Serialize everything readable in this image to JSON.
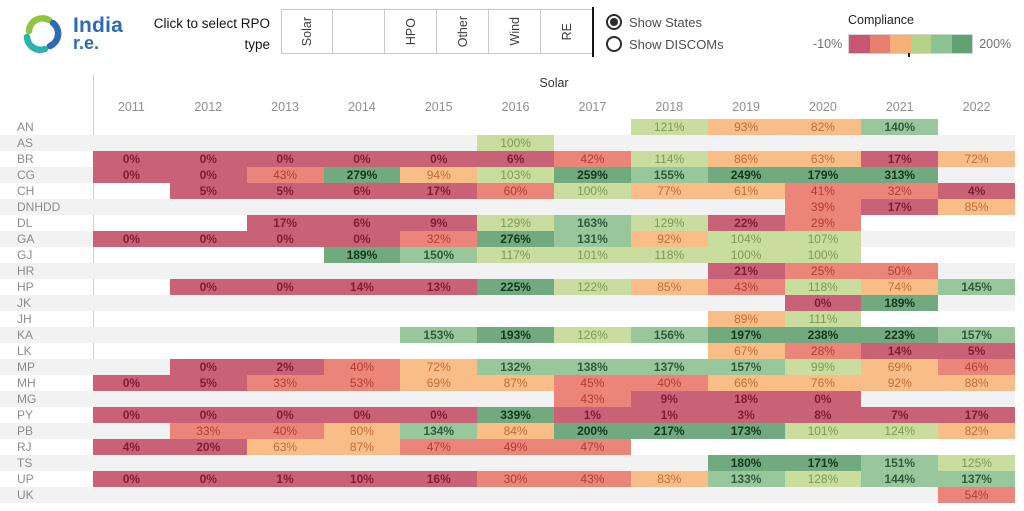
{
  "header": {
    "logo": {
      "line1": "India",
      "line2": "r.e."
    },
    "prompt": "Click to select RPO\ntype",
    "rpo_tabs": [
      "Solar",
      "",
      "HPO",
      "Other",
      "Wind",
      "RE"
    ],
    "radio_options": [
      {
        "label": "Show States",
        "selected": true
      },
      {
        "label": "Show DISCOMs",
        "selected": false
      }
    ],
    "legend": {
      "title": "Compliance",
      "min_label": "-10%",
      "max_label": "200%",
      "colors": [
        "#c65671",
        "#e97d70",
        "#f7b078",
        "#b3d28a",
        "#8dc393",
        "#61a173"
      ]
    }
  },
  "heatmap": {
    "group_label": "Solar",
    "years": [
      "2011",
      "2012",
      "2013",
      "2014",
      "2015",
      "2016",
      "2017",
      "2018",
      "2019",
      "2020",
      "2021",
      "2022"
    ],
    "bins": {
      "thresholds": [
        25,
        60,
        95,
        130,
        165
      ],
      "bg": [
        "#ca6277",
        "#eb8579",
        "#f9bd87",
        "#c8dd9e",
        "#97c79b",
        "#70aa7e"
      ],
      "text": [
        "#7f1d35",
        "#b03d33",
        "#bf6e33",
        "#7d9b52",
        "#2e5c3d",
        "#15371f"
      ],
      "bold_bins": [
        1,
        5,
        6
      ]
    },
    "rows": [
      {
        "state": "AN",
        "values": [
          null,
          null,
          null,
          null,
          null,
          null,
          null,
          121,
          93,
          82,
          140,
          null
        ]
      },
      {
        "state": "AS",
        "values": [
          null,
          null,
          null,
          null,
          null,
          100,
          null,
          null,
          null,
          null,
          null,
          null
        ]
      },
      {
        "state": "BR",
        "values": [
          0,
          0,
          0,
          0,
          0,
          6,
          42,
          114,
          86,
          63,
          17,
          72
        ]
      },
      {
        "state": "CG",
        "values": [
          0,
          0,
          43,
          279,
          94,
          103,
          259,
          155,
          249,
          179,
          313,
          null
        ]
      },
      {
        "state": "CH",
        "values": [
          null,
          5,
          5,
          6,
          17,
          60,
          100,
          77,
          61,
          41,
          32,
          4
        ]
      },
      {
        "state": "DNHDD",
        "values": [
          null,
          null,
          null,
          null,
          null,
          null,
          null,
          null,
          null,
          39,
          17,
          85
        ]
      },
      {
        "state": "DL",
        "values": [
          null,
          null,
          17,
          6,
          9,
          129,
          163,
          129,
          22,
          29,
          null,
          null
        ]
      },
      {
        "state": "GA",
        "values": [
          0,
          0,
          0,
          0,
          32,
          276,
          131,
          92,
          104,
          107,
          null,
          null
        ]
      },
      {
        "state": "GJ",
        "values": [
          null,
          null,
          null,
          189,
          150,
          117,
          101,
          118,
          100,
          100,
          null,
          null
        ]
      },
      {
        "state": "HR",
        "values": [
          null,
          null,
          null,
          null,
          null,
          null,
          null,
          null,
          21,
          25,
          50,
          null
        ]
      },
      {
        "state": "HP",
        "values": [
          null,
          0,
          0,
          14,
          13,
          225,
          122,
          85,
          43,
          118,
          74,
          145
        ]
      },
      {
        "state": "JK",
        "values": [
          null,
          null,
          null,
          null,
          null,
          null,
          null,
          null,
          null,
          0,
          189,
          null
        ]
      },
      {
        "state": "JH",
        "values": [
          null,
          null,
          null,
          null,
          null,
          null,
          null,
          null,
          89,
          111,
          null,
          null
        ]
      },
      {
        "state": "KA",
        "values": [
          null,
          null,
          null,
          null,
          153,
          193,
          126,
          156,
          197,
          238,
          223,
          157
        ]
      },
      {
        "state": "LK",
        "values": [
          null,
          null,
          null,
          null,
          null,
          null,
          null,
          null,
          67,
          28,
          14,
          5
        ]
      },
      {
        "state": "MP",
        "values": [
          null,
          0,
          2,
          40,
          72,
          132,
          138,
          137,
          157,
          99,
          69,
          46
        ]
      },
      {
        "state": "MH",
        "values": [
          0,
          5,
          33,
          53,
          69,
          87,
          45,
          40,
          66,
          76,
          92,
          88
        ]
      },
      {
        "state": "MG",
        "values": [
          null,
          null,
          null,
          null,
          null,
          null,
          43,
          9,
          18,
          0,
          null,
          null
        ]
      },
      {
        "state": "PY",
        "values": [
          0,
          0,
          0,
          0,
          0,
          339,
          1,
          1,
          3,
          8,
          7,
          17
        ]
      },
      {
        "state": "PB",
        "values": [
          null,
          33,
          40,
          80,
          134,
          84,
          200,
          217,
          173,
          101,
          124,
          82
        ]
      },
      {
        "state": "RJ",
        "values": [
          4,
          20,
          63,
          87,
          47,
          49,
          47,
          null,
          null,
          null,
          null,
          null
        ]
      },
      {
        "state": "TS",
        "values": [
          null,
          null,
          null,
          null,
          null,
          null,
          null,
          null,
          180,
          171,
          151,
          125
        ]
      },
      {
        "state": "UP",
        "values": [
          0,
          0,
          1,
          10,
          16,
          30,
          43,
          83,
          133,
          128,
          144,
          137
        ]
      },
      {
        "state": "UK",
        "values": [
          null,
          null,
          null,
          null,
          null,
          null,
          null,
          null,
          null,
          null,
          null,
          54
        ]
      }
    ]
  }
}
